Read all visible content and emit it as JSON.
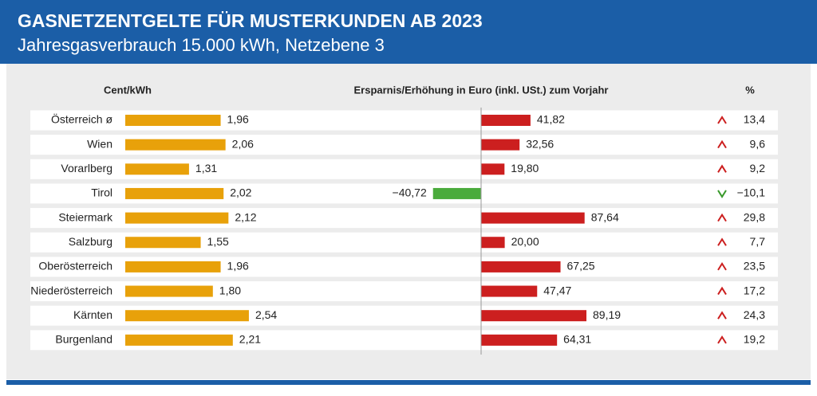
{
  "chart_data": {
    "type": "bar",
    "title": "GASNETZENTGELTE FÜR MUSTERKUNDEN AB 2023",
    "subtitle": "Jahresgasverbrauch 15.000 kWh, Netzebene 3",
    "categories": [
      "Österreich ø",
      "Wien",
      "Vorarlberg",
      "Tirol",
      "Steiermark",
      "Salzburg",
      "Oberösterreich",
      "Niederösterreich",
      "Kärnten",
      "Burgenland"
    ],
    "series": [
      {
        "name": "Cent/kWh",
        "color": "#e8a10a",
        "xlim": [
          0,
          3
        ],
        "values": [
          1.96,
          2.06,
          1.31,
          2.02,
          2.12,
          1.55,
          1.96,
          1.8,
          2.54,
          2.21
        ],
        "value_labels": [
          "1,96",
          "2,06",
          "1,31",
          "2,02",
          "2,12",
          "1,55",
          "1,96",
          "1,80",
          "2,54",
          "2,21"
        ]
      },
      {
        "name": "Ersparnis/Erhöhung in Euro (inkl. USt.) zum Vorjahr",
        "color": "#cc1f1f",
        "negative_color": "#4aab3c",
        "xlim": [
          -50,
          100
        ],
        "values": [
          41.82,
          32.56,
          19.8,
          -40.72,
          87.64,
          20.0,
          67.25,
          47.47,
          89.19,
          64.31
        ],
        "value_labels": [
          "41,82",
          "32,56",
          "19,80",
          "−40,72",
          "87,64",
          "20,00",
          "67,25",
          "47,47",
          "89,19",
          "64,31"
        ]
      }
    ],
    "percent": {
      "name": "%",
      "up_color": "#cc1f1f",
      "down_color": "#3a9a2c",
      "values": [
        13.4,
        9.6,
        9.2,
        -10.1,
        29.8,
        7.7,
        23.5,
        17.2,
        24.3,
        19.2
      ],
      "value_labels": [
        "13,4",
        "9,6",
        "9,2",
        "−10,1",
        "29,8",
        "7,7",
        "23,5",
        "17,2",
        "24,3",
        "19,2"
      ]
    }
  }
}
